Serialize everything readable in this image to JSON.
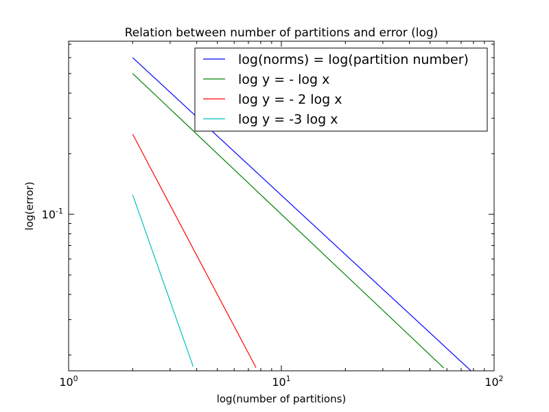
{
  "chart_data": {
    "type": "line",
    "title": "Relation between number of partitions and error (log)",
    "xlabel": "log(number of partitions)",
    "ylabel": "log(error)",
    "xscale": "log",
    "yscale": "log",
    "xlim": [
      1,
      100
    ],
    "ylim": [
      0.0167,
      0.724
    ],
    "grid": false,
    "legend_position": "top-right",
    "x_ticks": [
      {
        "value": 1,
        "base": "10",
        "exp": "0"
      },
      {
        "value": 10,
        "base": "10",
        "exp": "1"
      },
      {
        "value": 100,
        "base": "10",
        "exp": "2"
      }
    ],
    "y_ticks": [
      {
        "value": 0.1,
        "base": "10",
        "exp": "-1"
      }
    ],
    "series": [
      {
        "name": "log(norms) = log(partition number)",
        "color": "#0000ff",
        "x": [
          2,
          78
        ],
        "y": [
          0.6,
          0.01667
        ]
      },
      {
        "name": "log y = - log x",
        "color": "#008000",
        "x": [
          2,
          58
        ],
        "y": [
          0.5,
          0.01724
        ]
      },
      {
        "name": "log y = - 2 log x",
        "color": "#ff0000",
        "x": [
          2,
          7.6
        ],
        "y": [
          0.25,
          0.01731
        ]
      },
      {
        "name": "log y = -3 log x",
        "color": "#00bfbf",
        "x": [
          2,
          3.85
        ],
        "y": [
          0.125,
          0.01753
        ]
      }
    ]
  }
}
